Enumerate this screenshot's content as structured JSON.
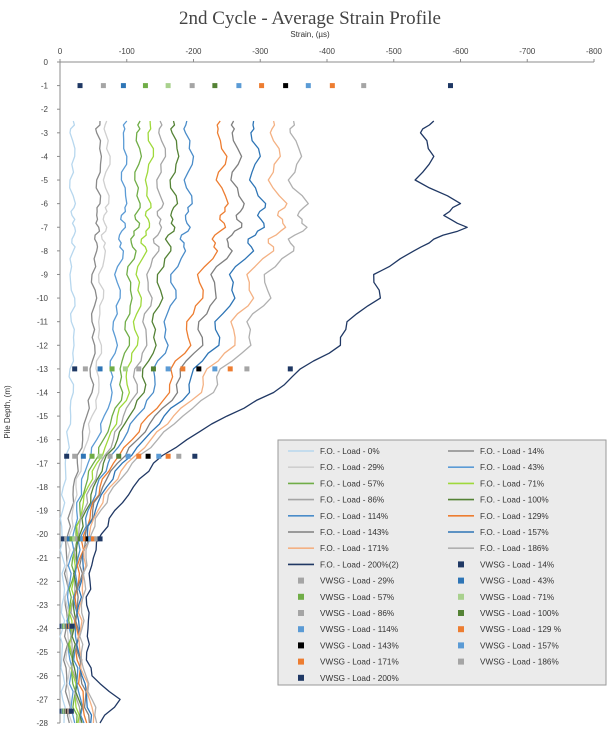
{
  "chart_data": {
    "type": "line",
    "title": "2nd Cycle - Average Strain Profile",
    "xlabel": "Strain, (µs)",
    "ylabel": "Pile Depth, (m)",
    "xlim": [
      0,
      -800
    ],
    "ylim": [
      0,
      -28
    ],
    "x_ticks": [
      "0",
      "-100",
      "-200",
      "-300",
      "-400",
      "-500",
      "-600",
      "-700",
      "-800"
    ],
    "y_ticks": [
      "0",
      "-1",
      "-2",
      "-3",
      "-4",
      "-5",
      "-6",
      "-7",
      "-8",
      "-9",
      "-10",
      "-11",
      "-12",
      "-13",
      "-14",
      "-15",
      "-16",
      "-17",
      "-18",
      "-19",
      "-20",
      "-21",
      "-22",
      "-23",
      "-24",
      "-25",
      "-26",
      "-27",
      "-28"
    ],
    "grid": false,
    "legend_position": "bottom-right inside plot",
    "fo_depths": [
      -2.5,
      -3,
      -4,
      -5,
      -6,
      -6.5,
      -7,
      -7.5,
      -8,
      -9,
      -10,
      -11,
      -12,
      -13,
      -14,
      -15,
      -16,
      -17,
      -18,
      -19,
      -20,
      -21,
      -22,
      -23,
      -24,
      -25,
      -26,
      -27,
      -28
    ],
    "fo_series": [
      {
        "name": "F.O. - Load - 0%",
        "color": "#b7d7ee",
        "values": [
          -20,
          -15,
          -22,
          -15,
          -23,
          -18,
          -22,
          -18,
          -20,
          -15,
          -22,
          -17,
          -21,
          -15,
          -20,
          -16,
          -12,
          -8,
          -5,
          -4,
          -3,
          -4,
          -5,
          -3,
          -4,
          -3,
          -5,
          -4,
          -6
        ]
      },
      {
        "name": "F.O. - Load - 14%",
        "color": "#8a8a8a",
        "values": [
          -60,
          -55,
          -62,
          -55,
          -60,
          -55,
          -58,
          -52,
          -55,
          -48,
          -55,
          -48,
          -52,
          -45,
          -48,
          -40,
          -34,
          -26,
          -20,
          -16,
          -12,
          -10,
          -10,
          -8,
          -9,
          -8,
          -10,
          -12,
          -14
        ]
      },
      {
        "name": "F.O. - Load - 29%",
        "color": "#cfcfcf",
        "values": [
          -70,
          -68,
          -75,
          -65,
          -73,
          -66,
          -70,
          -63,
          -68,
          -58,
          -65,
          -58,
          -62,
          -54,
          -58,
          -48,
          -42,
          -32,
          -24,
          -19,
          -15,
          -12,
          -12,
          -10,
          -11,
          -10,
          -13,
          -15,
          -18
        ]
      },
      {
        "name": "F.O. - Load - 43%",
        "color": "#5b9bd5",
        "values": [
          -100,
          -95,
          -100,
          -92,
          -100,
          -92,
          -98,
          -88,
          -95,
          -82,
          -90,
          -80,
          -86,
          -75,
          -78,
          -66,
          -55,
          -42,
          -32,
          -25,
          -20,
          -16,
          -15,
          -13,
          -14,
          -13,
          -16,
          -18,
          -22
        ]
      },
      {
        "name": "F.O. - Load - 57%",
        "color": "#70ad47",
        "values": [
          -120,
          -115,
          -122,
          -112,
          -120,
          -112,
          -118,
          -106,
          -114,
          -100,
          -108,
          -98,
          -104,
          -90,
          -94,
          -78,
          -65,
          -50,
          -38,
          -30,
          -24,
          -19,
          -18,
          -15,
          -16,
          -15,
          -18,
          -21,
          -25
        ]
      },
      {
        "name": "F.O. - Load - 71%",
        "color": "#9fd93b",
        "values": [
          -135,
          -132,
          -140,
          -128,
          -136,
          -128,
          -134,
          -122,
          -130,
          -114,
          -122,
          -110,
          -116,
          -100,
          -104,
          -86,
          -72,
          -55,
          -42,
          -33,
          -26,
          -21,
          -20,
          -17,
          -18,
          -17,
          -20,
          -23,
          -27
        ]
      },
      {
        "name": "F.O. - Load - 86%",
        "color": "#a5a5a5",
        "values": [
          -150,
          -148,
          -158,
          -145,
          -155,
          -146,
          -152,
          -140,
          -148,
          -130,
          -138,
          -124,
          -130,
          -112,
          -116,
          -95,
          -80,
          -60,
          -46,
          -36,
          -28,
          -23,
          -22,
          -18,
          -20,
          -18,
          -22,
          -25,
          -30
        ]
      },
      {
        "name": "F.O. - Load - 100%",
        "color": "#548235",
        "values": [
          -170,
          -168,
          -178,
          -165,
          -176,
          -166,
          -172,
          -158,
          -166,
          -146,
          -154,
          -138,
          -144,
          -124,
          -126,
          -104,
          -86,
          -65,
          -50,
          -39,
          -30,
          -25,
          -23,
          -20,
          -21,
          -20,
          -24,
          -28,
          -33
        ]
      },
      {
        "name": "F.O. - Load - 114%",
        "color": "#4a8cc9",
        "values": [
          -190,
          -188,
          -200,
          -186,
          -198,
          -188,
          -195,
          -180,
          -188,
          -166,
          -174,
          -156,
          -162,
          -140,
          -140,
          -115,
          -95,
          -72,
          -55,
          -42,
          -33,
          -27,
          -25,
          -22,
          -23,
          -22,
          -26,
          -31,
          -36
        ]
      },
      {
        "name": "F.O. - Load - 129%",
        "color": "#ed7d31",
        "values": [
          -240,
          -236,
          -250,
          -234,
          -252,
          -240,
          -248,
          -228,
          -236,
          -206,
          -214,
          -190,
          -196,
          -166,
          -164,
          -132,
          -108,
          -80,
          -60,
          -46,
          -36,
          -30,
          -28,
          -24,
          -25,
          -24,
          -29,
          -35,
          -40
        ]
      },
      {
        "name": "F.O. - Load - 143%",
        "color": "#7f7f7f",
        "values": [
          -260,
          -258,
          -272,
          -256,
          -276,
          -264,
          -272,
          -250,
          -258,
          -226,
          -234,
          -208,
          -214,
          -180,
          -176,
          -142,
          -116,
          -86,
          -64,
          -49,
          -38,
          -32,
          -30,
          -26,
          -27,
          -26,
          -31,
          -38,
          -44
        ]
      },
      {
        "name": "F.O. - Load - 157%",
        "color": "#2e75b6",
        "values": [
          -290,
          -286,
          -300,
          -284,
          -308,
          -296,
          -306,
          -282,
          -290,
          -254,
          -262,
          -232,
          -238,
          -200,
          -194,
          -156,
          -126,
          -93,
          -70,
          -53,
          -41,
          -34,
          -32,
          -28,
          -29,
          -28,
          -33,
          -40,
          -46
        ]
      },
      {
        "name": "F.O. - Load - 171%",
        "color": "#f4b183",
        "values": [
          -320,
          -315,
          -330,
          -312,
          -340,
          -326,
          -338,
          -312,
          -320,
          -280,
          -290,
          -256,
          -262,
          -220,
          -212,
          -170,
          -136,
          -100,
          -75,
          -57,
          -44,
          -36,
          -34,
          -30,
          -31,
          -30,
          -36,
          -44,
          -50
        ]
      },
      {
        "name": "F.O. - Load - 186%",
        "color": "#b0b0b0",
        "values": [
          -350,
          -345,
          -362,
          -342,
          -372,
          -356,
          -370,
          -342,
          -350,
          -306,
          -316,
          -280,
          -286,
          -240,
          -230,
          -184,
          -146,
          -108,
          -80,
          -61,
          -47,
          -39,
          -37,
          -32,
          -33,
          -32,
          -39,
          -48,
          -55
        ]
      },
      {
        "name": "F.O. - Load - 200%(2)",
        "color": "#203864",
        "values": [
          -560,
          -540,
          -560,
          -532,
          -600,
          -575,
          -610,
          -560,
          -530,
          -470,
          -480,
          -430,
          -420,
          -360,
          -320,
          -250,
          -190,
          -140,
          -110,
          -82,
          -62,
          -50,
          -45,
          -40,
          -42,
          -40,
          -48,
          -90,
          -60
        ]
      }
    ],
    "vwsg_series": [
      {
        "name": "VWSG - Load - 14%",
        "color": "#1f3864",
        "points": [
          [
            -30,
            -1
          ],
          [
            -22,
            -13
          ],
          [
            -10,
            -16.7
          ],
          [
            -5,
            -20.2
          ],
          [
            -3,
            -23.9
          ],
          [
            -3,
            -27.5
          ]
        ]
      },
      {
        "name": "VWSG - Load - 29%",
        "color": "#a5a5a5",
        "points": [
          [
            -65,
            -1
          ],
          [
            -38,
            -13
          ],
          [
            -22,
            -16.7
          ],
          [
            -10,
            -20.2
          ],
          [
            -5,
            -23.9
          ],
          [
            -5,
            -27.5
          ]
        ]
      },
      {
        "name": "VWSG - Load - 43%",
        "color": "#2e75b6",
        "points": [
          [
            -95,
            -1
          ],
          [
            -60,
            -13
          ],
          [
            -35,
            -16.7
          ],
          [
            -14,
            -20.2
          ],
          [
            -6,
            -23.9
          ],
          [
            -6,
            -27.5
          ]
        ]
      },
      {
        "name": "VWSG - Load - 57%",
        "color": "#70ad47",
        "points": [
          [
            -128,
            -1
          ],
          [
            -78,
            -13
          ],
          [
            -48,
            -16.7
          ],
          [
            -18,
            -20.2
          ],
          [
            -7,
            -23.9
          ],
          [
            -7,
            -27.5
          ]
        ]
      },
      {
        "name": "VWSG - Load - 71%",
        "color": "#a9d18e",
        "points": [
          [
            -162,
            -1
          ],
          [
            -98,
            -13
          ],
          [
            -60,
            -16.7
          ],
          [
            -22,
            -20.2
          ],
          [
            -8,
            -23.9
          ],
          [
            -8,
            -27.5
          ]
        ]
      },
      {
        "name": "VWSG - Load - 86%",
        "color": "#a5a5a5",
        "points": [
          [
            -198,
            -1
          ],
          [
            -118,
            -13
          ],
          [
            -75,
            -16.7
          ],
          [
            -26,
            -20.2
          ],
          [
            -10,
            -23.9
          ],
          [
            -9,
            -27.5
          ]
        ]
      },
      {
        "name": "VWSG - Load - 100%",
        "color": "#548235",
        "points": [
          [
            -232,
            -1
          ],
          [
            -140,
            -13
          ],
          [
            -88,
            -16.7
          ],
          [
            -30,
            -20.2
          ],
          [
            -11,
            -23.9
          ],
          [
            -10,
            -27.5
          ]
        ]
      },
      {
        "name": "VWSG - Load - 114%",
        "color": "#5b9bd5",
        "points": [
          [
            -268,
            -1
          ],
          [
            -162,
            -13
          ],
          [
            -102,
            -16.7
          ],
          [
            -34,
            -20.2
          ],
          [
            -12,
            -23.9
          ],
          [
            -11,
            -27.5
          ]
        ]
      },
      {
        "name": "VWSG - Load - 129 %",
        "color": "#ed7d31",
        "points": [
          [
            -302,
            -1
          ],
          [
            -184,
            -13
          ],
          [
            -118,
            -16.7
          ],
          [
            -38,
            -20.2
          ],
          [
            -13,
            -23.9
          ],
          [
            -12,
            -27.5
          ]
        ]
      },
      {
        "name": "VWSG - Load - 143%",
        "color": "#000000",
        "points": [
          [
            -338,
            -1
          ],
          [
            -208,
            -13
          ],
          [
            -132,
            -16.7
          ],
          [
            -42,
            -20.2
          ],
          [
            -14,
            -23.9
          ],
          [
            -13,
            -27.5
          ]
        ]
      },
      {
        "name": "VWSG - Load - 157%",
        "color": "#5b9bd5",
        "points": [
          [
            -372,
            -1
          ],
          [
            -232,
            -13
          ],
          [
            -148,
            -16.7
          ],
          [
            -46,
            -20.2
          ],
          [
            -15,
            -23.9
          ],
          [
            -14,
            -27.5
          ]
        ]
      },
      {
        "name": "VWSG - Load - 171%",
        "color": "#ed7d31",
        "points": [
          [
            -408,
            -1
          ],
          [
            -255,
            -13
          ],
          [
            -162,
            -16.7
          ],
          [
            -50,
            -20.2
          ],
          [
            -16,
            -23.9
          ],
          [
            -15,
            -27.5
          ]
        ]
      },
      {
        "name": "VWSG - Load - 186%",
        "color": "#a5a5a5",
        "points": [
          [
            -455,
            -1
          ],
          [
            -280,
            -13
          ],
          [
            -178,
            -16.7
          ],
          [
            -55,
            -20.2
          ],
          [
            -17,
            -23.9
          ],
          [
            -16,
            -27.5
          ]
        ]
      },
      {
        "name": "VWSG - Load - 200%",
        "color": "#1f3864",
        "points": [
          [
            -585,
            -1
          ],
          [
            -345,
            -13
          ],
          [
            -202,
            -16.7
          ],
          [
            -60,
            -20.2
          ],
          [
            -18,
            -23.9
          ],
          [
            -17,
            -27.5
          ]
        ]
      }
    ],
    "legend_entries": [
      {
        "label": "F.O. - Load - 0%",
        "kind": "line",
        "color": "#b7d7ee"
      },
      {
        "label": "F.O. - Load - 14%",
        "kind": "line",
        "color": "#8a8a8a"
      },
      {
        "label": "F.O. - Load - 29%",
        "kind": "line",
        "color": "#cfcfcf"
      },
      {
        "label": "F.O. - Load - 43%",
        "kind": "line",
        "color": "#5b9bd5"
      },
      {
        "label": "F.O. - Load - 57%",
        "kind": "line",
        "color": "#70ad47"
      },
      {
        "label": "F.O. - Load - 71%",
        "kind": "line",
        "color": "#9fd93b"
      },
      {
        "label": "F.O. - Load - 86%",
        "kind": "line",
        "color": "#a5a5a5"
      },
      {
        "label": "F.O. - Load - 100%",
        "kind": "line",
        "color": "#548235"
      },
      {
        "label": "F.O. - Load - 114%",
        "kind": "line",
        "color": "#4a8cc9"
      },
      {
        "label": "F.O. - Load - 129%",
        "kind": "line",
        "color": "#ed7d31"
      },
      {
        "label": "F.O. - Load - 143%",
        "kind": "line",
        "color": "#7f7f7f"
      },
      {
        "label": "F.O. - Load - 157%",
        "kind": "line",
        "color": "#2e75b6"
      },
      {
        "label": "F.O. - Load - 171%",
        "kind": "line",
        "color": "#f4b183"
      },
      {
        "label": "F.O. - Load - 186%",
        "kind": "line",
        "color": "#b0b0b0"
      },
      {
        "label": "F.O. - Load - 200%(2)",
        "kind": "line",
        "color": "#203864"
      },
      {
        "label": "VWSG - Load - 14%",
        "kind": "marker",
        "color": "#1f3864"
      },
      {
        "label": "VWSG - Load - 29%",
        "kind": "marker",
        "color": "#a5a5a5"
      },
      {
        "label": "VWSG - Load - 43%",
        "kind": "marker",
        "color": "#2e75b6"
      },
      {
        "label": "VWSG - Load - 57%",
        "kind": "marker",
        "color": "#70ad47"
      },
      {
        "label": "VWSG - Load - 71%",
        "kind": "marker",
        "color": "#a9d18e"
      },
      {
        "label": "VWSG - Load - 86%",
        "kind": "marker",
        "color": "#a5a5a5"
      },
      {
        "label": "VWSG - Load - 100%",
        "kind": "marker",
        "color": "#548235"
      },
      {
        "label": "VWSG - Load - 114%",
        "kind": "marker",
        "color": "#5b9bd5"
      },
      {
        "label": "VWSG - Load - 129 %",
        "kind": "marker",
        "color": "#ed7d31"
      },
      {
        "label": "VWSG - Load - 143%",
        "kind": "marker",
        "color": "#000000"
      },
      {
        "label": "VWSG - Load - 157%",
        "kind": "marker",
        "color": "#5b9bd5"
      },
      {
        "label": "VWSG - Load - 171%",
        "kind": "marker",
        "color": "#ed7d31"
      },
      {
        "label": "VWSG - Load - 186%",
        "kind": "marker",
        "color": "#a5a5a5"
      },
      {
        "label": "VWSG - Load - 200%",
        "kind": "marker",
        "color": "#1f3864"
      }
    ]
  }
}
